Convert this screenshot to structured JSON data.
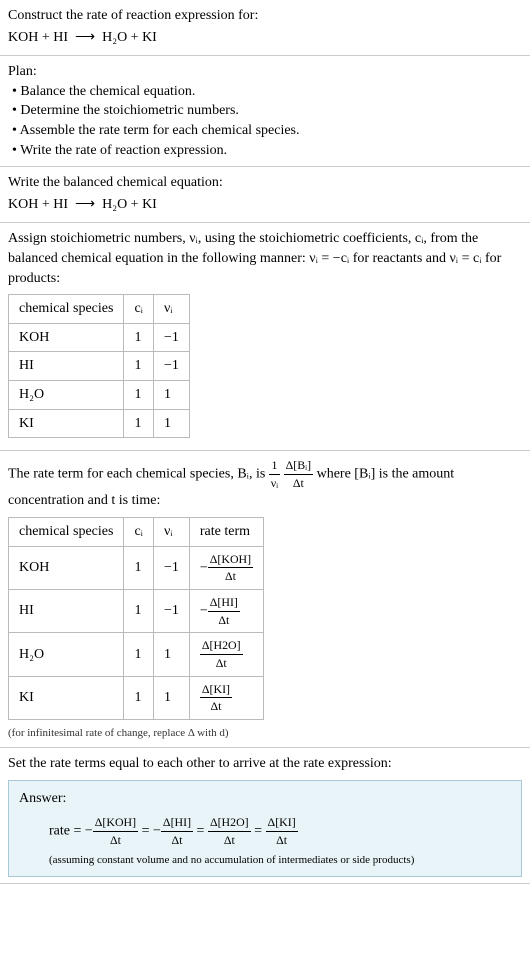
{
  "intro": {
    "prompt": "Construct the rate of reaction expression for:",
    "equation_lhs": "KOH + HI",
    "equation_arrow": "⟶",
    "equation_rhs": "H₂O + KI"
  },
  "plan": {
    "heading": "Plan:",
    "items": [
      "• Balance the chemical equation.",
      "• Determine the stoichiometric numbers.",
      "• Assemble the rate term for each chemical species.",
      "• Write the rate of reaction expression."
    ]
  },
  "balanced": {
    "heading": "Write the balanced chemical equation:",
    "equation_lhs": "KOH + HI",
    "equation_arrow": "⟶",
    "equation_rhs": "H₂O + KI"
  },
  "stoich": {
    "text_before": "Assign stoichiometric numbers, νᵢ, using the stoichiometric coefficients, cᵢ, from the balanced chemical equation in the following manner: νᵢ = −cᵢ for reactants and νᵢ = cᵢ for products:",
    "headers": [
      "chemical species",
      "cᵢ",
      "νᵢ"
    ],
    "rows": [
      [
        "KOH",
        "1",
        "−1"
      ],
      [
        "HI",
        "1",
        "−1"
      ],
      [
        "H₂O",
        "1",
        "1"
      ],
      [
        "KI",
        "1",
        "1"
      ]
    ]
  },
  "rateterm": {
    "text_before_a": "The rate term for each chemical species, Bᵢ, is ",
    "text_before_b": " where [Bᵢ] is the amount concentration and t is time:",
    "headers": [
      "chemical species",
      "cᵢ",
      "νᵢ",
      "rate term"
    ],
    "rows": [
      {
        "sp": "KOH",
        "c": "1",
        "v": "−1",
        "sign": "−",
        "num": "Δ[KOH]",
        "den": "Δt"
      },
      {
        "sp": "HI",
        "c": "1",
        "v": "−1",
        "sign": "−",
        "num": "Δ[HI]",
        "den": "Δt"
      },
      {
        "sp": "H₂O",
        "c": "1",
        "v": "1",
        "sign": "",
        "num": "Δ[H2O]",
        "den": "Δt"
      },
      {
        "sp": "KI",
        "c": "1",
        "v": "1",
        "sign": "",
        "num": "Δ[KI]",
        "den": "Δt"
      }
    ],
    "note": "(for infinitesimal rate of change, replace Δ with d)"
  },
  "final": {
    "heading": "Set the rate terms equal to each other to arrive at the rate expression:",
    "answer_label": "Answer:",
    "rate_prefix": "rate = ",
    "terms": [
      {
        "sign": "−",
        "num": "Δ[KOH]",
        "den": "Δt"
      },
      {
        "sign": "−",
        "num": "Δ[HI]",
        "den": "Δt"
      },
      {
        "sign": "",
        "num": "Δ[H2O]",
        "den": "Δt"
      },
      {
        "sign": "",
        "num": "Δ[KI]",
        "den": "Δt"
      }
    ],
    "eq": " = ",
    "assumption": "(assuming constant volume and no accumulation of intermediates or side products)"
  },
  "frac_1_nu": {
    "num": "1",
    "den": "νᵢ"
  },
  "frac_dBi": {
    "num": "Δ[Bᵢ]",
    "den": "Δt"
  }
}
